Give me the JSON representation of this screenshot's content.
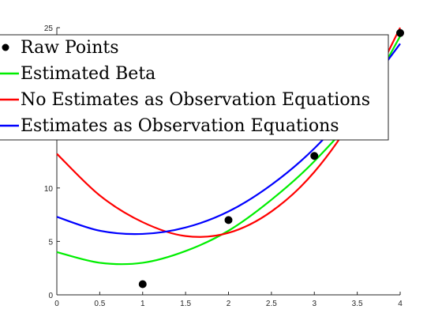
{
  "chart_data": {
    "type": "scatter",
    "xlim": [
      0,
      4
    ],
    "ylim": [
      0,
      25
    ],
    "x_ticks": [
      "0",
      "0.5",
      "1",
      "1.5",
      "2",
      "2.5",
      "3",
      "3.5",
      "4"
    ],
    "y_ticks": [
      "0",
      "5",
      "10",
      "25"
    ],
    "grid": false,
    "legend_position": "top",
    "raw_points": {
      "name": "Raw Points",
      "color": "#000000",
      "x": [
        1,
        2,
        3,
        4
      ],
      "y": [
        1,
        7,
        13,
        24.5
      ]
    },
    "curves": [
      {
        "name": "Estimated Beta",
        "color": "#00ee00",
        "x": [
          0,
          0.5,
          1,
          1.5,
          2,
          2.5,
          3,
          3.5,
          4
        ],
        "y": [
          4.0,
          3.0,
          3.0,
          4.1,
          6.0,
          8.9,
          12.5,
          17.2,
          24.2
        ]
      },
      {
        "name": "No Estimates as Observation Equations",
        "color": "#ff0000",
        "x": [
          0,
          0.5,
          1,
          1.5,
          2,
          2.5,
          3,
          3.5,
          4
        ],
        "y": [
          13.2,
          9.3,
          6.8,
          5.5,
          5.8,
          7.8,
          11.5,
          17.2,
          25.0
        ]
      },
      {
        "name": "Estimates as Observation Equations",
        "color": "#0000ff",
        "x": [
          0,
          0.5,
          1,
          1.5,
          2,
          2.5,
          3,
          3.5,
          4
        ],
        "y": [
          7.3,
          6.0,
          5.7,
          6.3,
          7.8,
          10.3,
          13.7,
          18.2,
          23.5
        ]
      }
    ]
  }
}
